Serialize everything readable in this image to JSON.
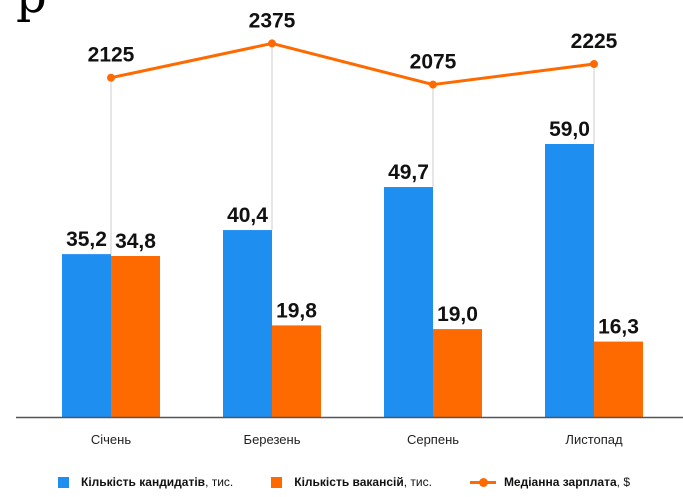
{
  "colors": {
    "candidates": "#1f8ef1",
    "vacancies": "#ff6a00",
    "salary": "#ff6a00",
    "axis": "#555555",
    "gridline": "#cccccc"
  },
  "chart_data": {
    "type": "bar",
    "categories": [
      "Січень",
      "Березень",
      "Серпень",
      "Листопад"
    ],
    "series": [
      {
        "name": "Кількість кандидатів",
        "unit": "тис.",
        "type": "bar",
        "values": [
          35.2,
          40.4,
          49.7,
          59.0
        ],
        "labels": [
          "35,2",
          "40,4",
          "49,7",
          "59,0"
        ]
      },
      {
        "name": "Кількість вакансій",
        "unit": "тис.",
        "type": "bar",
        "values": [
          34.8,
          19.8,
          19.0,
          16.3
        ],
        "labels": [
          "34,8",
          "19,8",
          "19,0",
          "16,3"
        ]
      },
      {
        "name": "Медіанна зарплата",
        "unit": "$",
        "type": "line",
        "values": [
          2125,
          2375,
          2075,
          2225
        ],
        "labels": [
          "2125",
          "2375",
          "2075",
          "2225"
        ]
      }
    ],
    "ylim": [
      0,
      65
    ],
    "salary_ylim": [
      0,
      2500
    ],
    "legend_position": "bottom",
    "grid": false
  },
  "legend": {
    "items": [
      {
        "bold": "Кількість кандидатів",
        "suffix": ", тис."
      },
      {
        "bold": "Кількість вакансій",
        "suffix": ", тис."
      },
      {
        "bold": "Медіанна зарплата",
        "suffix": ", $"
      }
    ]
  }
}
